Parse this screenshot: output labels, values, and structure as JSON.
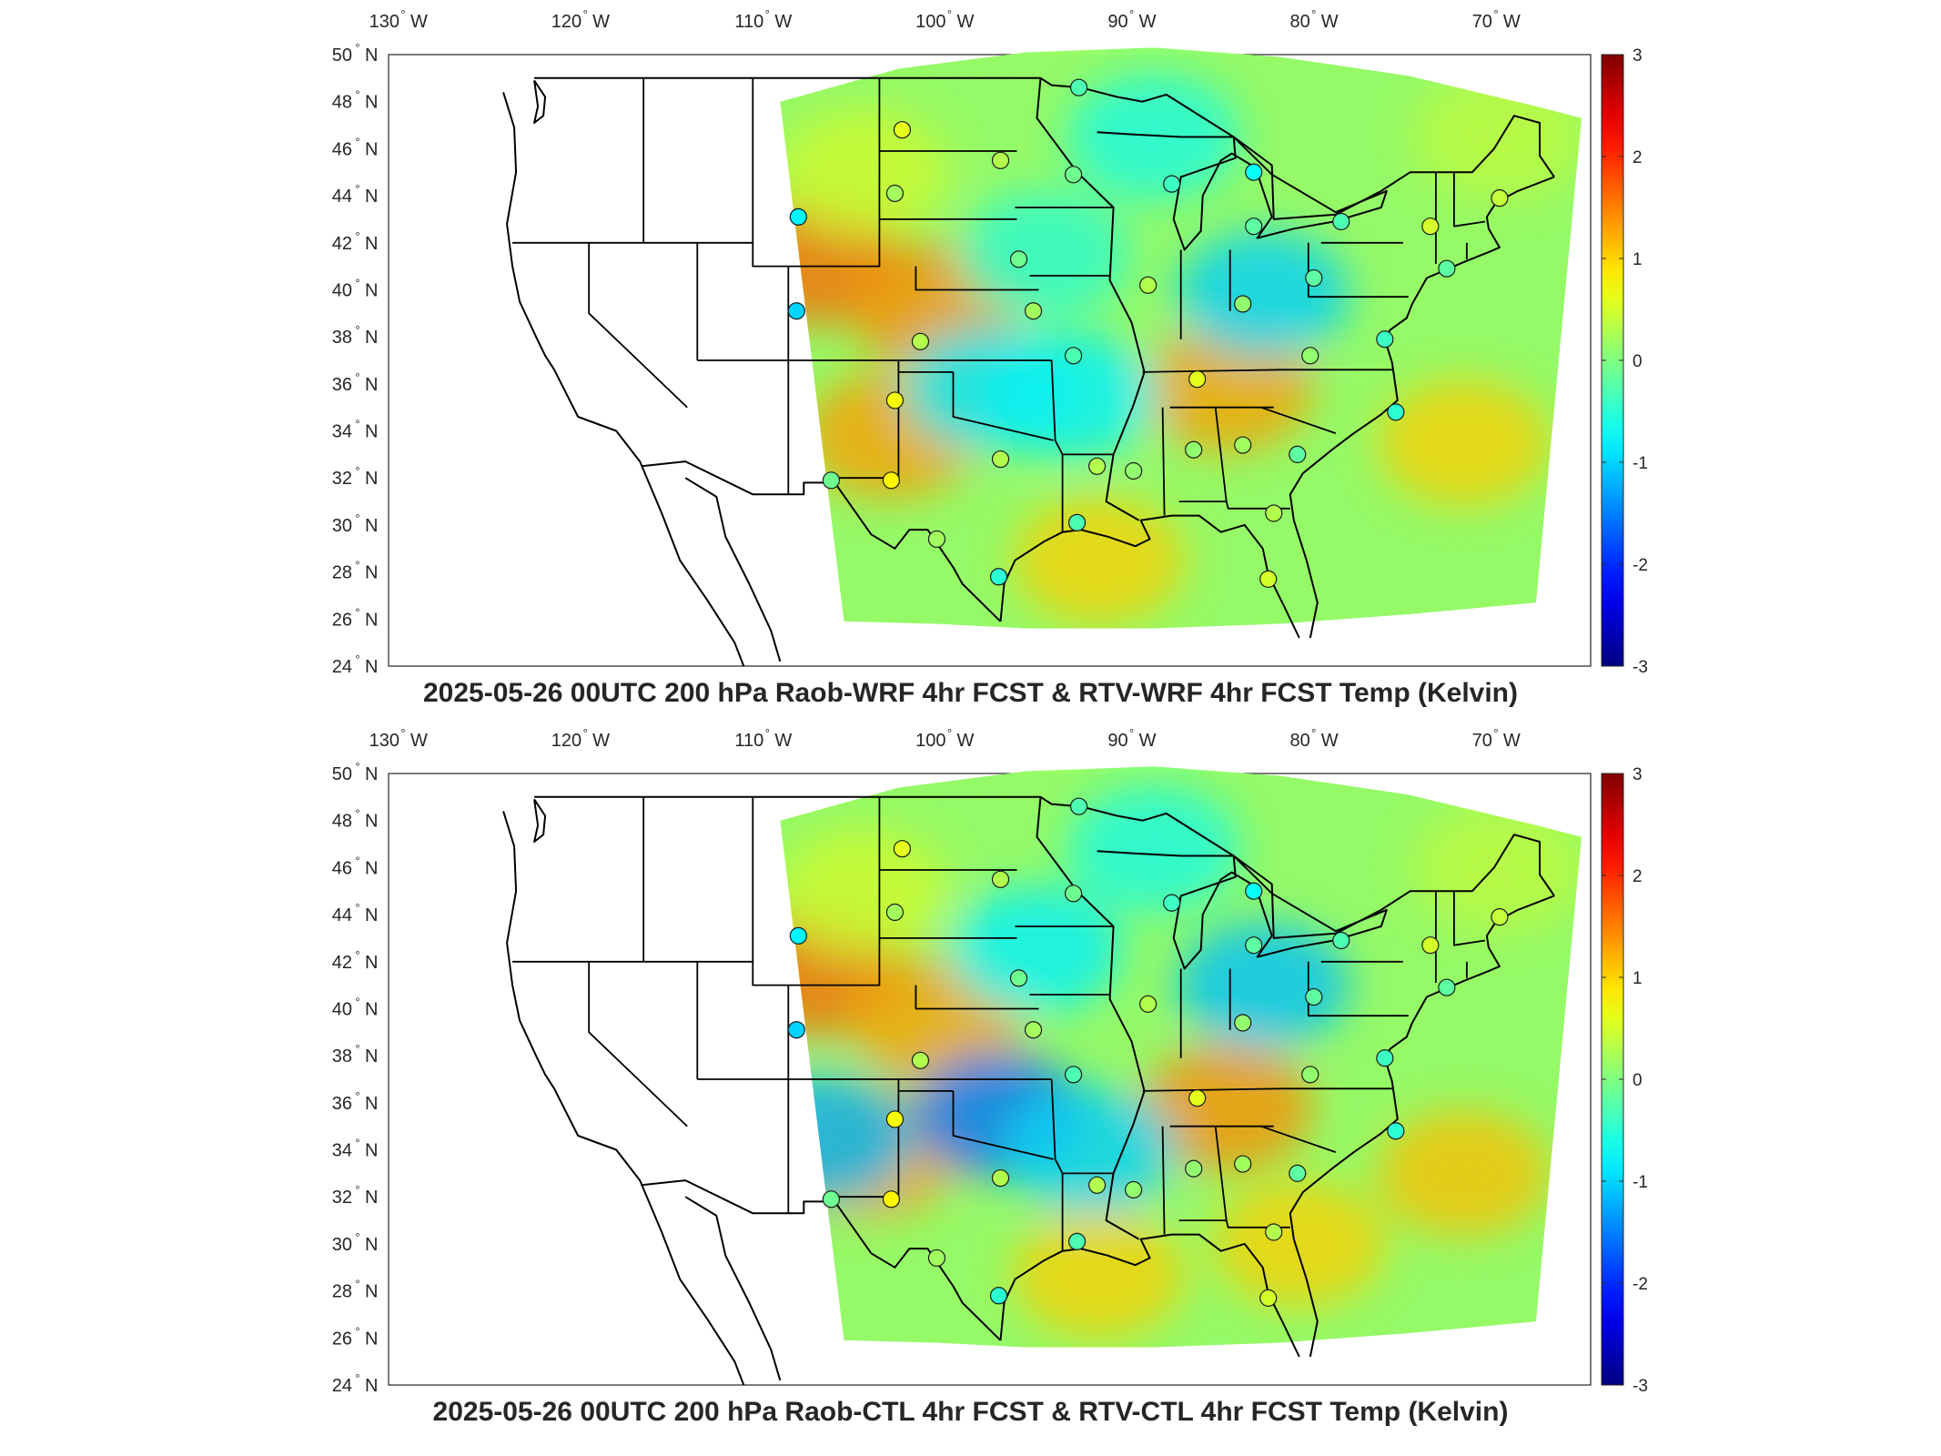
{
  "chart_data": [
    {
      "type": "heatmap",
      "title": "2025-05-26 00UTC 200 hPa Raob-WRF 4hr FCST & RTV-WRF 4hr FCST Temp (Kelvin)",
      "x_ticks": [
        {
          "value": -130,
          "label": "130",
          "hem": "W"
        },
        {
          "value": -120,
          "label": "120",
          "hem": "W"
        },
        {
          "value": -110,
          "label": "110",
          "hem": "W"
        },
        {
          "value": -100,
          "label": "100",
          "hem": "W"
        },
        {
          "value": -90,
          "label": "90",
          "hem": "W"
        },
        {
          "value": -80,
          "label": "80",
          "hem": "W"
        },
        {
          "value": -70,
          "label": "70",
          "hem": "W"
        }
      ],
      "y_ticks": [
        {
          "value": 50,
          "label": "50",
          "hem": "N"
        },
        {
          "value": 48,
          "label": "48",
          "hem": "N"
        },
        {
          "value": 46,
          "label": "46",
          "hem": "N"
        },
        {
          "value": 44,
          "label": "44",
          "hem": "N"
        },
        {
          "value": 42,
          "label": "42",
          "hem": "N"
        },
        {
          "value": 40,
          "label": "40",
          "hem": "N"
        },
        {
          "value": 38,
          "label": "38",
          "hem": "N"
        },
        {
          "value": 36,
          "label": "36",
          "hem": "N"
        },
        {
          "value": 34,
          "label": "34",
          "hem": "N"
        },
        {
          "value": 32,
          "label": "32",
          "hem": "N"
        },
        {
          "value": 30,
          "label": "30",
          "hem": "N"
        },
        {
          "value": 28,
          "label": "28",
          "hem": "N"
        },
        {
          "value": 26,
          "label": "26",
          "hem": "N"
        },
        {
          "value": 24,
          "label": "24",
          "hem": "N"
        }
      ],
      "xlim": [
        -131,
        -65
      ],
      "ylim": [
        24,
        50
      ],
      "colorbar": {
        "min": -3,
        "max": 3,
        "ticks": [
          3,
          2,
          1,
          0,
          -1,
          -2,
          -3
        ],
        "colormap": "jet"
      },
      "background_blobs": [
        {
          "lon": -107.5,
          "lat": 41.2,
          "value": 1.6
        },
        {
          "lon": -101,
          "lat": 39.3,
          "value": 1.4
        },
        {
          "lon": -103.5,
          "lat": 33.8,
          "value": 1.3
        },
        {
          "lon": -92,
          "lat": 28.5,
          "value": 1.0
        },
        {
          "lon": -85,
          "lat": 35.8,
          "value": 1.3
        },
        {
          "lon": -72,
          "lat": 33.5,
          "value": 1.0
        },
        {
          "lon": -83,
          "lat": 39.8,
          "value": -1.0
        },
        {
          "lon": -98,
          "lat": 35.8,
          "value": -0.9
        },
        {
          "lon": -89,
          "lat": 46.5,
          "value": -0.6
        },
        {
          "lon": -93.5,
          "lat": 35.5,
          "value": -0.8
        },
        {
          "lon": -95,
          "lat": 41.5,
          "value": -0.5
        },
        {
          "lon": -70,
          "lat": 46.5,
          "value": 0.4
        },
        {
          "lon": -105,
          "lat": 45.0,
          "value": 0.5
        }
      ],
      "stations": [
        {
          "lon": -93.1,
          "lat": 48.6,
          "value": -0.3
        },
        {
          "lon": -102.8,
          "lat": 46.8,
          "value": 0.6
        },
        {
          "lon": -97.4,
          "lat": 45.5,
          "value": 0.3
        },
        {
          "lon": -93.4,
          "lat": 44.9,
          "value": -0.1
        },
        {
          "lon": -83.5,
          "lat": 45.0,
          "value": -0.7
        },
        {
          "lon": -88.0,
          "lat": 44.5,
          "value": -0.4
        },
        {
          "lon": -103.2,
          "lat": 44.1,
          "value": 0.2
        },
        {
          "lon": -108.5,
          "lat": 43.1,
          "value": -0.8
        },
        {
          "lon": -83.5,
          "lat": 42.7,
          "value": -0.2
        },
        {
          "lon": -78.7,
          "lat": 42.9,
          "value": -0.3
        },
        {
          "lon": -73.8,
          "lat": 42.7,
          "value": 0.5
        },
        {
          "lon": -70.0,
          "lat": 43.9,
          "value": 0.4
        },
        {
          "lon": -96.4,
          "lat": 41.3,
          "value": -0.1
        },
        {
          "lon": -89.3,
          "lat": 40.2,
          "value": 0.3
        },
        {
          "lon": -80.2,
          "lat": 40.5,
          "value": -0.2
        },
        {
          "lon": -72.9,
          "lat": 40.9,
          "value": -0.2
        },
        {
          "lon": -108.6,
          "lat": 39.1,
          "value": -1.0
        },
        {
          "lon": -95.6,
          "lat": 39.1,
          "value": 0.2
        },
        {
          "lon": -84.1,
          "lat": 39.4,
          "value": 0.1
        },
        {
          "lon": -101.8,
          "lat": 37.8,
          "value": 0.3
        },
        {
          "lon": -93.4,
          "lat": 37.2,
          "value": -0.3
        },
        {
          "lon": -80.4,
          "lat": 37.2,
          "value": 0.1
        },
        {
          "lon": -76.3,
          "lat": 37.9,
          "value": -0.4
        },
        {
          "lon": -86.6,
          "lat": 36.2,
          "value": 0.6
        },
        {
          "lon": -103.2,
          "lat": 35.3,
          "value": 0.7
        },
        {
          "lon": -75.7,
          "lat": 34.8,
          "value": -0.5
        },
        {
          "lon": -97.4,
          "lat": 32.8,
          "value": 0.3
        },
        {
          "lon": -92.1,
          "lat": 32.5,
          "value": 0.3
        },
        {
          "lon": -90.1,
          "lat": 32.3,
          "value": 0.1
        },
        {
          "lon": -86.8,
          "lat": 33.2,
          "value": 0.1
        },
        {
          "lon": -84.1,
          "lat": 33.4,
          "value": 0.2
        },
        {
          "lon": -81.1,
          "lat": 33.0,
          "value": -0.2
        },
        {
          "lon": -106.7,
          "lat": 31.9,
          "value": -0.1
        },
        {
          "lon": -103.4,
          "lat": 31.9,
          "value": 0.8
        },
        {
          "lon": -93.2,
          "lat": 30.1,
          "value": -0.3
        },
        {
          "lon": -100.9,
          "lat": 29.4,
          "value": 0.2
        },
        {
          "lon": -97.5,
          "lat": 27.8,
          "value": -0.5
        },
        {
          "lon": -82.4,
          "lat": 30.5,
          "value": 0.3
        },
        {
          "lon": -82.7,
          "lat": 27.7,
          "value": 0.5
        }
      ]
    },
    {
      "type": "heatmap",
      "title": "2025-05-26 00UTC 200 hPa Raob-CTL 4hr FCST & RTV-CTL 4hr FCST Temp (Kelvin)",
      "x_ticks": [
        {
          "value": -130,
          "label": "130",
          "hem": "W"
        },
        {
          "value": -120,
          "label": "120",
          "hem": "W"
        },
        {
          "value": -110,
          "label": "110",
          "hem": "W"
        },
        {
          "value": -100,
          "label": "100",
          "hem": "W"
        },
        {
          "value": -90,
          "label": "90",
          "hem": "W"
        },
        {
          "value": -80,
          "label": "80",
          "hem": "W"
        },
        {
          "value": -70,
          "label": "70",
          "hem": "W"
        }
      ],
      "y_ticks": [
        {
          "value": 50,
          "label": "50",
          "hem": "N"
        },
        {
          "value": 48,
          "label": "48",
          "hem": "N"
        },
        {
          "value": 46,
          "label": "46",
          "hem": "N"
        },
        {
          "value": 44,
          "label": "44",
          "hem": "N"
        },
        {
          "value": 42,
          "label": "42",
          "hem": "N"
        },
        {
          "value": 40,
          "label": "40",
          "hem": "N"
        },
        {
          "value": 38,
          "label": "38",
          "hem": "N"
        },
        {
          "value": 36,
          "label": "36",
          "hem": "N"
        },
        {
          "value": 34,
          "label": "34",
          "hem": "N"
        },
        {
          "value": 32,
          "label": "32",
          "hem": "N"
        },
        {
          "value": 30,
          "label": "30",
          "hem": "N"
        },
        {
          "value": 28,
          "label": "28",
          "hem": "N"
        },
        {
          "value": 26,
          "label": "26",
          "hem": "N"
        },
        {
          "value": 24,
          "label": "24",
          "hem": "N"
        }
      ],
      "xlim": [
        -131,
        -65
      ],
      "ylim": [
        24,
        50
      ],
      "colorbar": {
        "min": -3,
        "max": 3,
        "ticks": [
          3,
          2,
          1,
          0,
          -1,
          -2,
          -3
        ],
        "colormap": "jet"
      },
      "background_blobs": [
        {
          "lon": -107.5,
          "lat": 41.5,
          "value": 1.6
        },
        {
          "lon": -101,
          "lat": 39.5,
          "value": 1.3
        },
        {
          "lon": -104.5,
          "lat": 33.8,
          "value": 1.3
        },
        {
          "lon": -92,
          "lat": 28.7,
          "value": 1.0
        },
        {
          "lon": -85,
          "lat": 35.8,
          "value": 1.4
        },
        {
          "lon": -81,
          "lat": 30.0,
          "value": 1.0
        },
        {
          "lon": -72,
          "lat": 33.0,
          "value": 1.1
        },
        {
          "lon": -83,
          "lat": 41.0,
          "value": -1.1
        },
        {
          "lon": -97.5,
          "lat": 35.5,
          "value": -1.6
        },
        {
          "lon": -107,
          "lat": 34.5,
          "value": -1.2
        },
        {
          "lon": -92.5,
          "lat": 34.0,
          "value": -1.0
        },
        {
          "lon": -95.5,
          "lat": 42.5,
          "value": -0.8
        },
        {
          "lon": -89,
          "lat": 46.8,
          "value": -0.6
        },
        {
          "lon": -70,
          "lat": 46.0,
          "value": 0.4
        },
        {
          "lon": -105,
          "lat": 45.0,
          "value": 0.5
        }
      ],
      "stations": [
        {
          "lon": -93.1,
          "lat": 48.6,
          "value": -0.3
        },
        {
          "lon": -102.8,
          "lat": 46.8,
          "value": 0.6
        },
        {
          "lon": -97.4,
          "lat": 45.5,
          "value": 0.3
        },
        {
          "lon": -93.4,
          "lat": 44.9,
          "value": -0.1
        },
        {
          "lon": -83.5,
          "lat": 45.0,
          "value": -0.7
        },
        {
          "lon": -88.0,
          "lat": 44.5,
          "value": -0.4
        },
        {
          "lon": -103.2,
          "lat": 44.1,
          "value": 0.2
        },
        {
          "lon": -108.5,
          "lat": 43.1,
          "value": -0.8
        },
        {
          "lon": -83.5,
          "lat": 42.7,
          "value": -0.2
        },
        {
          "lon": -78.7,
          "lat": 42.9,
          "value": -0.3
        },
        {
          "lon": -73.8,
          "lat": 42.7,
          "value": 0.5
        },
        {
          "lon": -70.0,
          "lat": 43.9,
          "value": 0.4
        },
        {
          "lon": -96.4,
          "lat": 41.3,
          "value": -0.1
        },
        {
          "lon": -89.3,
          "lat": 40.2,
          "value": 0.3
        },
        {
          "lon": -80.2,
          "lat": 40.5,
          "value": -0.2
        },
        {
          "lon": -72.9,
          "lat": 40.9,
          "value": -0.2
        },
        {
          "lon": -108.6,
          "lat": 39.1,
          "value": -1.0
        },
        {
          "lon": -95.6,
          "lat": 39.1,
          "value": 0.2
        },
        {
          "lon": -84.1,
          "lat": 39.4,
          "value": 0.1
        },
        {
          "lon": -101.8,
          "lat": 37.8,
          "value": 0.3
        },
        {
          "lon": -93.4,
          "lat": 37.2,
          "value": -0.3
        },
        {
          "lon": -80.4,
          "lat": 37.2,
          "value": 0.1
        },
        {
          "lon": -76.3,
          "lat": 37.9,
          "value": -0.4
        },
        {
          "lon": -86.6,
          "lat": 36.2,
          "value": 0.6
        },
        {
          "lon": -103.2,
          "lat": 35.3,
          "value": 0.7
        },
        {
          "lon": -75.7,
          "lat": 34.8,
          "value": -0.5
        },
        {
          "lon": -97.4,
          "lat": 32.8,
          "value": 0.3
        },
        {
          "lon": -92.1,
          "lat": 32.5,
          "value": 0.3
        },
        {
          "lon": -90.1,
          "lat": 32.3,
          "value": 0.1
        },
        {
          "lon": -86.8,
          "lat": 33.2,
          "value": 0.1
        },
        {
          "lon": -84.1,
          "lat": 33.4,
          "value": 0.2
        },
        {
          "lon": -81.1,
          "lat": 33.0,
          "value": -0.2
        },
        {
          "lon": -106.7,
          "lat": 31.9,
          "value": -0.1
        },
        {
          "lon": -103.4,
          "lat": 31.9,
          "value": 0.8
        },
        {
          "lon": -93.2,
          "lat": 30.1,
          "value": -0.3
        },
        {
          "lon": -100.9,
          "lat": 29.4,
          "value": 0.2
        },
        {
          "lon": -97.5,
          "lat": 27.8,
          "value": -0.5
        },
        {
          "lon": -82.4,
          "lat": 30.5,
          "value": 0.3
        },
        {
          "lon": -82.7,
          "lat": 27.7,
          "value": 0.5
        }
      ]
    }
  ]
}
